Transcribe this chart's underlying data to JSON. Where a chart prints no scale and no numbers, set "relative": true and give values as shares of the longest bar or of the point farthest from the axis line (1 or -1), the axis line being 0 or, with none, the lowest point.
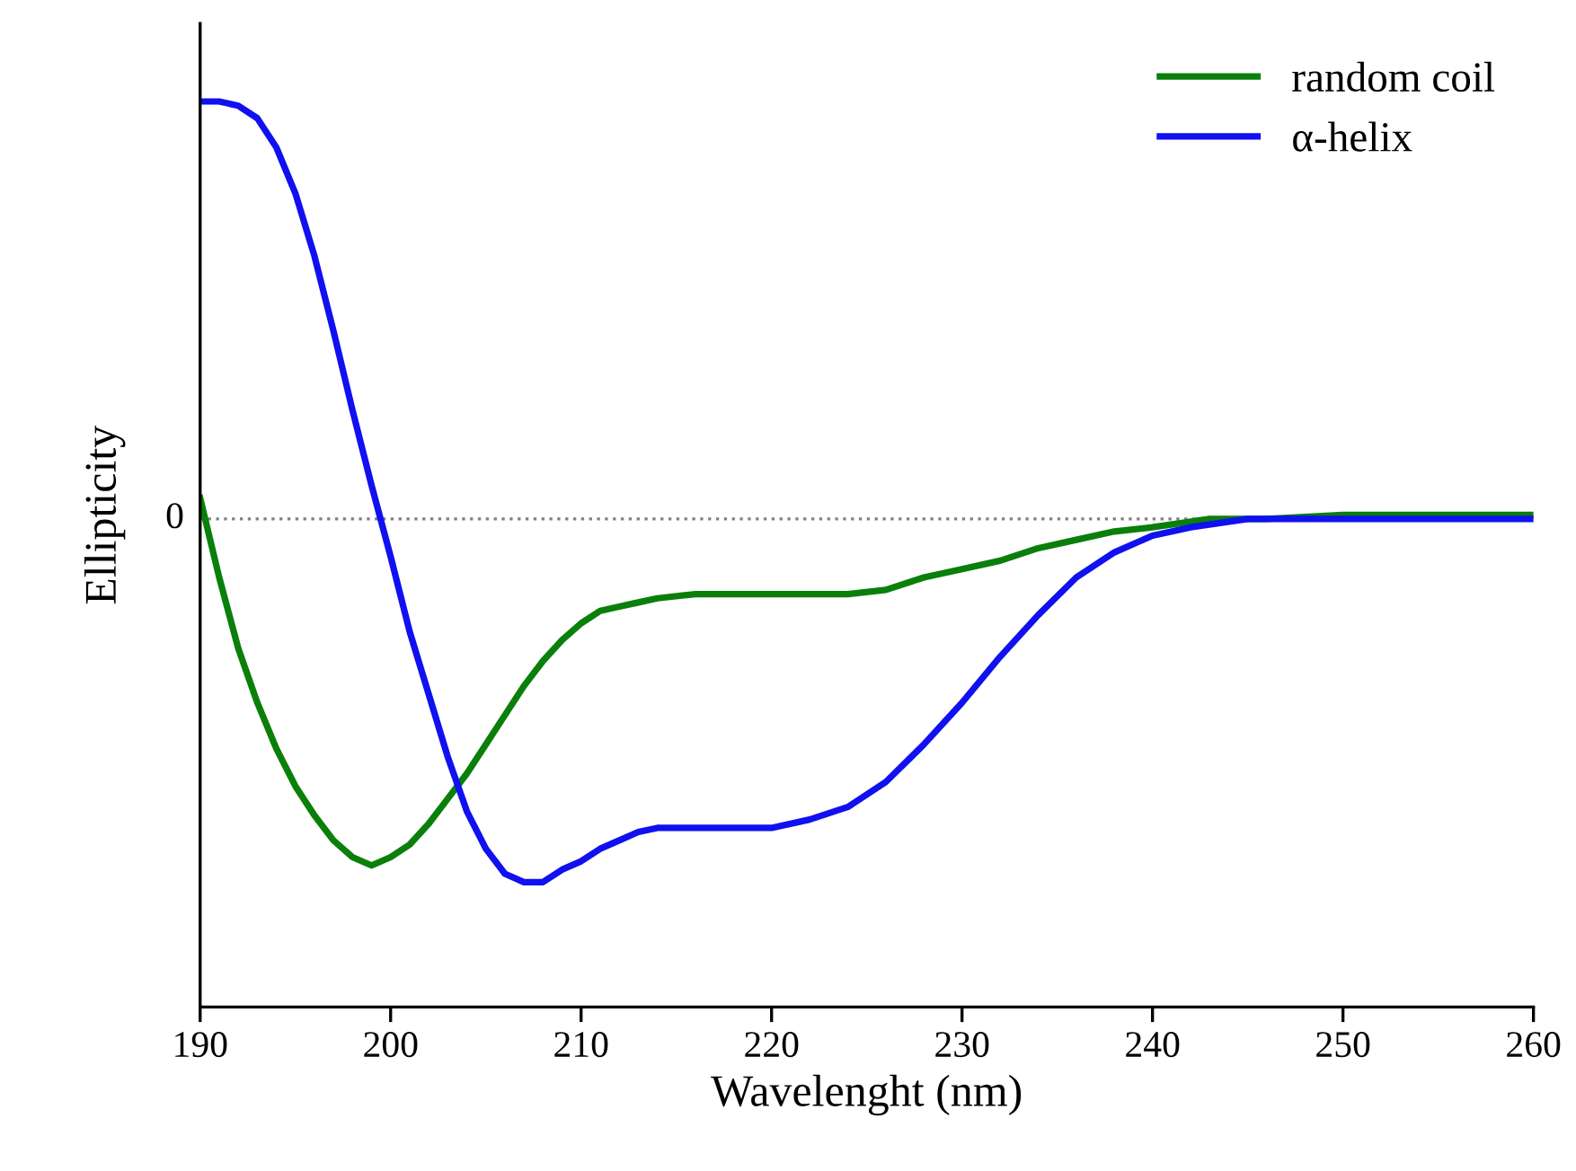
{
  "chart_data": {
    "type": "line",
    "xlabel": "Wavelenght (nm)",
    "ylabel": "Ellipticity",
    "relative": true,
    "xlim": [
      190,
      260
    ],
    "xticks": [
      190,
      200,
      210,
      220,
      230,
      240,
      250,
      260
    ],
    "legend": "top right",
    "grid": false,
    "marker": "none",
    "line_style": "solid",
    "ref_lines": [
      {
        "axis": "y",
        "value": 0,
        "label": "0",
        "color": "#808080",
        "line_style": "dotted"
      }
    ],
    "series": [
      {
        "name": "random coil",
        "color": "#0a7f0a",
        "x": [
          190,
          191,
          192,
          193,
          194,
          195,
          196,
          197,
          198,
          199,
          200,
          201,
          202,
          203,
          204,
          205,
          206,
          207,
          208,
          209,
          210,
          211,
          212,
          213,
          214,
          216,
          218,
          220,
          222,
          224,
          226,
          228,
          230,
          232,
          234,
          236,
          238,
          240,
          243,
          246,
          250,
          255,
          260
        ],
        "values": [
          0.05,
          -0.14,
          -0.31,
          -0.44,
          -0.55,
          -0.64,
          -0.71,
          -0.77,
          -0.81,
          -0.83,
          -0.81,
          -0.78,
          -0.73,
          -0.67,
          -0.61,
          -0.54,
          -0.47,
          -0.4,
          -0.34,
          -0.29,
          -0.25,
          -0.22,
          -0.21,
          -0.2,
          -0.19,
          -0.18,
          -0.18,
          -0.18,
          -0.18,
          -0.18,
          -0.17,
          -0.14,
          -0.12,
          -0.1,
          -0.07,
          -0.05,
          -0.03,
          -0.02,
          0.0,
          0.0,
          0.01,
          0.01,
          0.01
        ]
      },
      {
        "name": "α-helix",
        "color": "#1010f0",
        "x": [
          190,
          191,
          192,
          193,
          194,
          195,
          196,
          197,
          198,
          199,
          200,
          201,
          202,
          203,
          204,
          205,
          206,
          207,
          208,
          209,
          210,
          211,
          212,
          213,
          214,
          216,
          218,
          220,
          222,
          224,
          226,
          228,
          230,
          232,
          234,
          236,
          238,
          240,
          242,
          245,
          250,
          255,
          260
        ],
        "values": [
          1.0,
          1.0,
          0.99,
          0.96,
          0.89,
          0.78,
          0.63,
          0.45,
          0.26,
          0.08,
          -0.09,
          -0.27,
          -0.42,
          -0.57,
          -0.7,
          -0.79,
          -0.85,
          -0.87,
          -0.87,
          -0.84,
          -0.82,
          -0.79,
          -0.77,
          -0.75,
          -0.74,
          -0.74,
          -0.74,
          -0.74,
          -0.72,
          -0.69,
          -0.63,
          -0.54,
          -0.44,
          -0.33,
          -0.23,
          -0.14,
          -0.08,
          -0.04,
          -0.02,
          0.0,
          0.0,
          0.0,
          0.0
        ]
      }
    ]
  }
}
